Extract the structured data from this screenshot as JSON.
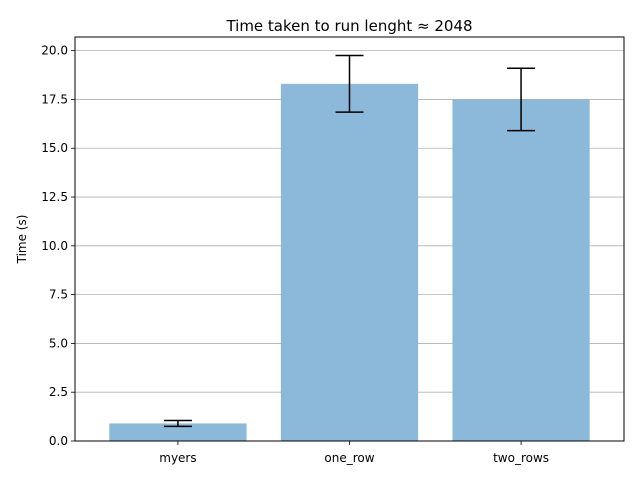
{
  "chart_data": {
    "type": "bar",
    "title": "Time taken to run lenght ≈ 2048",
    "xlabel": "",
    "ylabel": "Time (s)",
    "categories": [
      "myers",
      "one_row",
      "two_rows"
    ],
    "values": [
      0.9,
      18.3,
      17.5
    ],
    "errors": [
      0.15,
      1.45,
      1.6
    ],
    "ylim": [
      0,
      20.7
    ],
    "yticks": [
      0.0,
      2.5,
      5.0,
      7.5,
      10.0,
      12.5,
      15.0,
      17.5,
      20.0
    ],
    "ytick_labels": [
      "0.0",
      "2.5",
      "5.0",
      "7.5",
      "10.0",
      "12.5",
      "15.0",
      "17.5",
      "20.0"
    ],
    "grid": "y",
    "bar_color": "#8cb8d9",
    "error_color": "#000000",
    "grid_color": "#b0b0b0"
  }
}
